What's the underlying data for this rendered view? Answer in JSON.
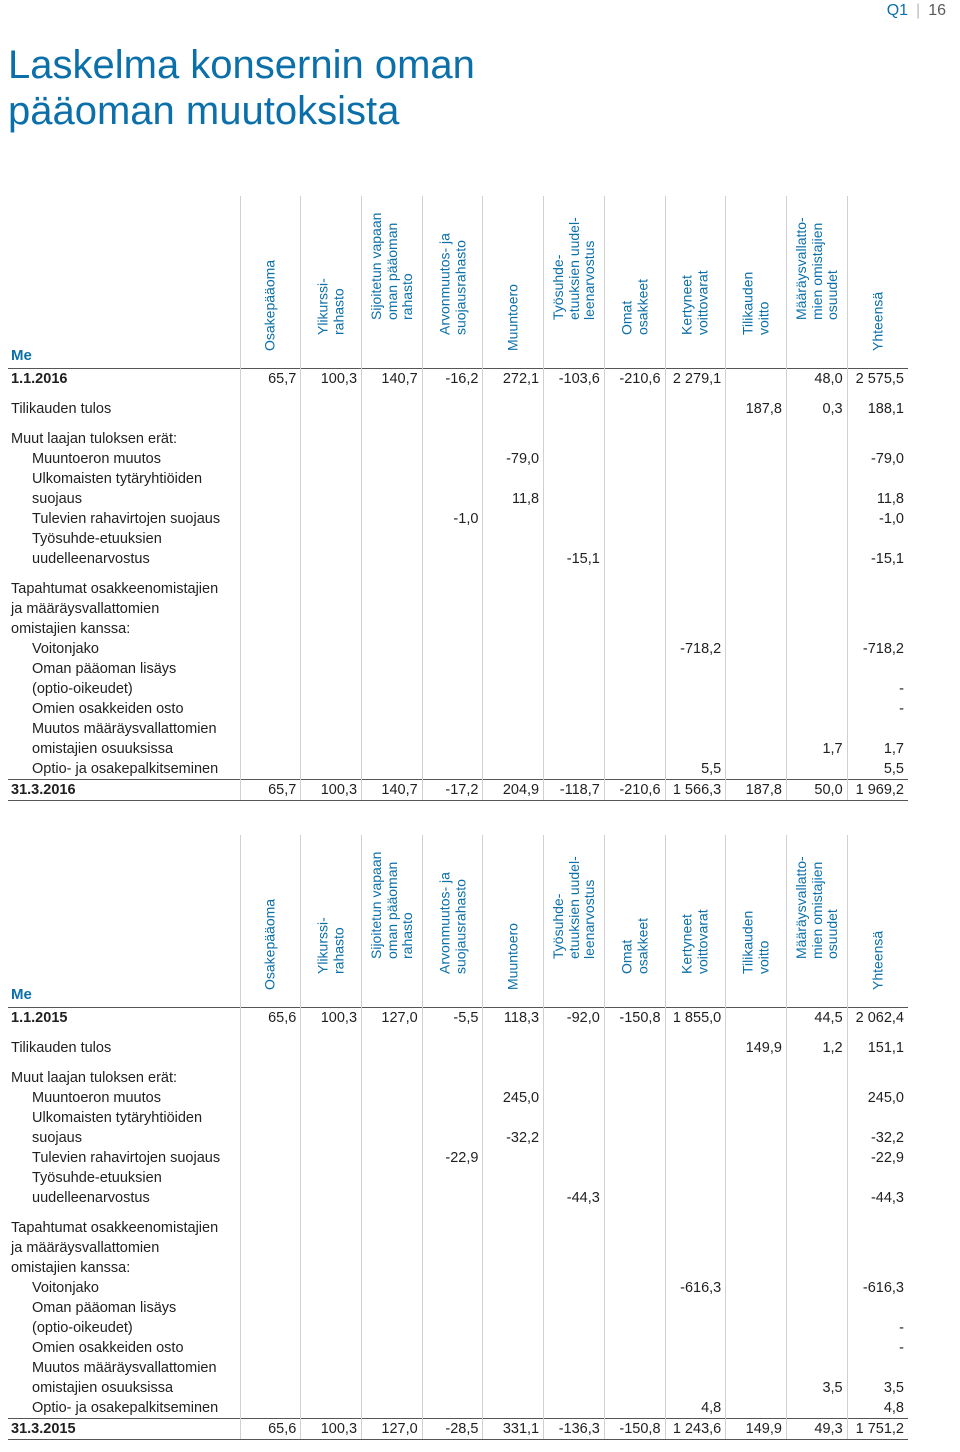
{
  "page": {
    "section": "Q1",
    "number": "16"
  },
  "title_lines": [
    "Laskelma konsernin oman",
    "pääoman muutoksista"
  ],
  "columns": [
    "Osakepääoma",
    "Ylikurssi-\nrahasto",
    "Sijoitetun vapaan\noman pääoman\nrahasto",
    "Arvonmuutos- ja\nsuojausrahasto",
    "Muuntoero",
    "Työsuhde-\netuuksien uudel-\nleenarvostus",
    "Omat\nosakkeet",
    "Kertyneet\nvoittovarat",
    "Tilikauden\nvoitto",
    "Määräysvallatto-\nmien omistajien\nosuudet",
    "Yhteensä"
  ],
  "unit_label": "Me",
  "tables": [
    {
      "rows": [
        {
          "type": "open",
          "label": "1.1.2016",
          "values": [
            "65,7",
            "100,3",
            "140,7",
            "-16,2",
            "272,1",
            "-103,6",
            "-210,6",
            "2 279,1",
            "",
            "48,0",
            "2 575,5"
          ]
        },
        {
          "type": "spacer"
        },
        {
          "type": "row",
          "label": "Tilikauden tulos",
          "values": [
            "",
            "",
            "",
            "",
            "",
            "",
            "",
            "",
            "187,8",
            "0,3",
            "188,1"
          ]
        },
        {
          "type": "spacer"
        },
        {
          "type": "row",
          "label": "Muut laajan tuloksen erät:",
          "values": [
            "",
            "",
            "",
            "",
            "",
            "",
            "",
            "",
            "",
            "",
            ""
          ]
        },
        {
          "type": "row",
          "indent": true,
          "label": "Muuntoeron muutos",
          "values": [
            "",
            "",
            "",
            "",
            "-79,0",
            "",
            "",
            "",
            "",
            "",
            "-79,0"
          ]
        },
        {
          "type": "row",
          "indent": true,
          "label": "Ulkomaisten tytäryhtiöiden",
          "values": [
            "",
            "",
            "",
            "",
            "",
            "",
            "",
            "",
            "",
            "",
            ""
          ]
        },
        {
          "type": "row",
          "indent": true,
          "label": "suojaus",
          "values": [
            "",
            "",
            "",
            "",
            "11,8",
            "",
            "",
            "",
            "",
            "",
            "11,8"
          ]
        },
        {
          "type": "row",
          "indent": true,
          "label": "Tulevien rahavirtojen suojaus",
          "values": [
            "",
            "",
            "",
            "-1,0",
            "",
            "",
            "",
            "",
            "",
            "",
            "-1,0"
          ]
        },
        {
          "type": "row",
          "indent": true,
          "label": "Työsuhde-etuuksien",
          "values": [
            "",
            "",
            "",
            "",
            "",
            "",
            "",
            "",
            "",
            "",
            ""
          ]
        },
        {
          "type": "row",
          "indent": true,
          "label": "uudelleenarvostus",
          "values": [
            "",
            "",
            "",
            "",
            "",
            "-15,1",
            "",
            "",
            "",
            "",
            "-15,1"
          ]
        },
        {
          "type": "spacer"
        },
        {
          "type": "row",
          "label": "Tapahtumat osakkeenomistajien",
          "values": [
            "",
            "",
            "",
            "",
            "",
            "",
            "",
            "",
            "",
            "",
            ""
          ]
        },
        {
          "type": "row",
          "label": "ja määräysvallattomien",
          "values": [
            "",
            "",
            "",
            "",
            "",
            "",
            "",
            "",
            "",
            "",
            ""
          ]
        },
        {
          "type": "row",
          "label": "omistajien kanssa:",
          "values": [
            "",
            "",
            "",
            "",
            "",
            "",
            "",
            "",
            "",
            "",
            ""
          ]
        },
        {
          "type": "row",
          "indent": true,
          "label": "Voitonjako",
          "values": [
            "",
            "",
            "",
            "",
            "",
            "",
            "",
            "-718,2",
            "",
            "",
            "-718,2"
          ]
        },
        {
          "type": "row",
          "indent": true,
          "label": "Oman pääoman lisäys",
          "values": [
            "",
            "",
            "",
            "",
            "",
            "",
            "",
            "",
            "",
            "",
            ""
          ]
        },
        {
          "type": "row",
          "indent": true,
          "label": "(optio-oikeudet)",
          "values": [
            "",
            "",
            "",
            "",
            "",
            "",
            "",
            "",
            "",
            "",
            "-"
          ]
        },
        {
          "type": "row",
          "indent": true,
          "label": "Omien osakkeiden osto",
          "values": [
            "",
            "",
            "",
            "",
            "",
            "",
            "",
            "",
            "",
            "",
            "-"
          ]
        },
        {
          "type": "row",
          "indent": true,
          "label": "Muutos määräysvallattomien",
          "values": [
            "",
            "",
            "",
            "",
            "",
            "",
            "",
            "",
            "",
            "",
            ""
          ]
        },
        {
          "type": "row",
          "indent": true,
          "label": "omistajien osuuksissa",
          "values": [
            "",
            "",
            "",
            "",
            "",
            "",
            "",
            "",
            "",
            "1,7",
            "1,7"
          ]
        },
        {
          "type": "row",
          "indent": true,
          "label": "Optio- ja osakepalkitseminen",
          "values": [
            "",
            "",
            "",
            "",
            "",
            "",
            "",
            "5,5",
            "",
            "",
            "5,5"
          ]
        },
        {
          "type": "close",
          "label": "31.3.2016",
          "values": [
            "65,7",
            "100,3",
            "140,7",
            "-17,2",
            "204,9",
            "-118,7",
            "-210,6",
            "1 566,3",
            "187,8",
            "50,0",
            "1 969,2"
          ]
        }
      ]
    },
    {
      "rows": [
        {
          "type": "open",
          "label": "1.1.2015",
          "values": [
            "65,6",
            "100,3",
            "127,0",
            "-5,5",
            "118,3",
            "-92,0",
            "-150,8",
            "1 855,0",
            "",
            "44,5",
            "2 062,4"
          ]
        },
        {
          "type": "spacer"
        },
        {
          "type": "row",
          "label": "Tilikauden tulos",
          "values": [
            "",
            "",
            "",
            "",
            "",
            "",
            "",
            "",
            "149,9",
            "1,2",
            "151,1"
          ]
        },
        {
          "type": "spacer"
        },
        {
          "type": "row",
          "label": "Muut laajan tuloksen erät:",
          "values": [
            "",
            "",
            "",
            "",
            "",
            "",
            "",
            "",
            "",
            "",
            ""
          ]
        },
        {
          "type": "row",
          "indent": true,
          "label": "Muuntoeron muutos",
          "values": [
            "",
            "",
            "",
            "",
            "245,0",
            "",
            "",
            "",
            "",
            "",
            "245,0"
          ]
        },
        {
          "type": "row",
          "indent": true,
          "label": "Ulkomaisten tytäryhtiöiden",
          "values": [
            "",
            "",
            "",
            "",
            "",
            "",
            "",
            "",
            "",
            "",
            ""
          ]
        },
        {
          "type": "row",
          "indent": true,
          "label": "suojaus",
          "values": [
            "",
            "",
            "",
            "",
            "-32,2",
            "",
            "",
            "",
            "",
            "",
            "-32,2"
          ]
        },
        {
          "type": "row",
          "indent": true,
          "label": "Tulevien rahavirtojen suojaus",
          "values": [
            "",
            "",
            "",
            "-22,9",
            "",
            "",
            "",
            "",
            "",
            "",
            "-22,9"
          ]
        },
        {
          "type": "row",
          "indent": true,
          "label": "Työsuhde-etuuksien",
          "values": [
            "",
            "",
            "",
            "",
            "",
            "",
            "",
            "",
            "",
            "",
            ""
          ]
        },
        {
          "type": "row",
          "indent": true,
          "label": "uudelleenarvostus",
          "values": [
            "",
            "",
            "",
            "",
            "",
            "-44,3",
            "",
            "",
            "",
            "",
            "-44,3"
          ]
        },
        {
          "type": "spacer"
        },
        {
          "type": "row",
          "label": "Tapahtumat osakkeenomistajien",
          "values": [
            "",
            "",
            "",
            "",
            "",
            "",
            "",
            "",
            "",
            "",
            ""
          ]
        },
        {
          "type": "row",
          "label": "ja määräysvallattomien",
          "values": [
            "",
            "",
            "",
            "",
            "",
            "",
            "",
            "",
            "",
            "",
            ""
          ]
        },
        {
          "type": "row",
          "label": "omistajien kanssa:",
          "values": [
            "",
            "",
            "",
            "",
            "",
            "",
            "",
            "",
            "",
            "",
            ""
          ]
        },
        {
          "type": "row",
          "indent": true,
          "label": "Voitonjako",
          "values": [
            "",
            "",
            "",
            "",
            "",
            "",
            "",
            "-616,3",
            "",
            "",
            "-616,3"
          ]
        },
        {
          "type": "row",
          "indent": true,
          "label": "Oman pääoman lisäys",
          "values": [
            "",
            "",
            "",
            "",
            "",
            "",
            "",
            "",
            "",
            "",
            ""
          ]
        },
        {
          "type": "row",
          "indent": true,
          "label": "(optio-oikeudet)",
          "values": [
            "",
            "",
            "",
            "",
            "",
            "",
            "",
            "",
            "",
            "",
            "-"
          ]
        },
        {
          "type": "row",
          "indent": true,
          "label": "Omien osakkeiden osto",
          "values": [
            "",
            "",
            "",
            "",
            "",
            "",
            "",
            "",
            "",
            "",
            "-"
          ]
        },
        {
          "type": "row",
          "indent": true,
          "label": "Muutos määräysvallattomien",
          "values": [
            "",
            "",
            "",
            "",
            "",
            "",
            "",
            "",
            "",
            "",
            ""
          ]
        },
        {
          "type": "row",
          "indent": true,
          "label": "omistajien osuuksissa",
          "values": [
            "",
            "",
            "",
            "",
            "",
            "",
            "",
            "",
            "",
            "3,5",
            "3,5"
          ]
        },
        {
          "type": "row",
          "indent": true,
          "label": "Optio- ja osakepalkitseminen",
          "values": [
            "",
            "",
            "",
            "",
            "",
            "",
            "",
            "4,8",
            "",
            "",
            "4,8"
          ]
        },
        {
          "type": "close",
          "label": "31.3.2015",
          "values": [
            "65,6",
            "100,3",
            "127,0",
            "-28,5",
            "331,1",
            "-136,3",
            "-150,8",
            "1 243,6",
            "149,9",
            "49,3",
            "1 751,2"
          ]
        }
      ]
    }
  ]
}
